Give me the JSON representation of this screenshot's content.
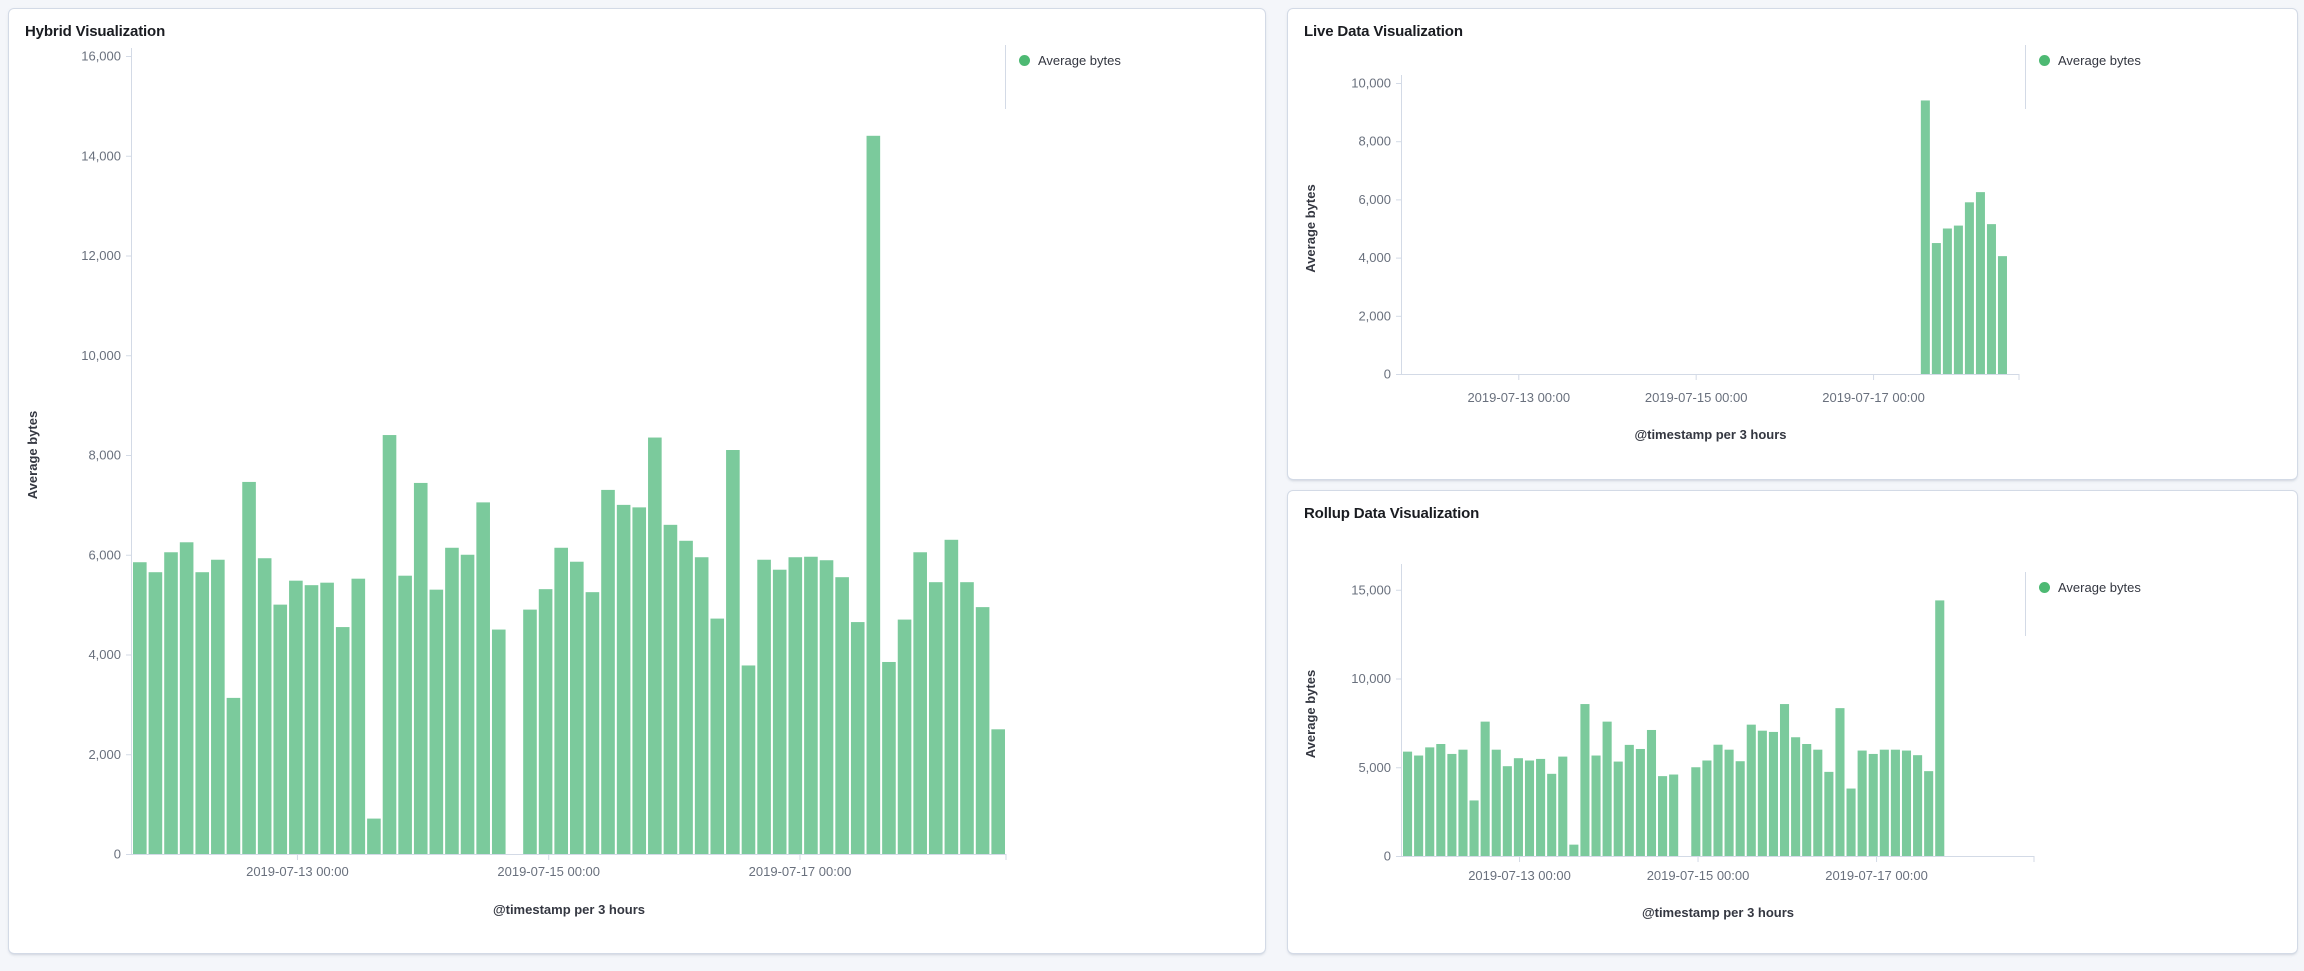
{
  "page": {
    "background": "#f4f6fa"
  },
  "colors": {
    "bar_fill": "#7bca9c",
    "legend_dot": "#4db973",
    "panel_background": "#ffffff",
    "panel_border": "#d3dae6",
    "title_text": "#1a1c21",
    "tick_text": "#69707d",
    "axis_title_text": "#343741",
    "axis_line": "#d3dae6"
  },
  "panels": [
    {
      "id": "hybrid",
      "title": "Hybrid Visualization",
      "legend_label": "Average bytes"
    },
    {
      "id": "live",
      "title": "Live Data Visualization",
      "legend_label": "Average bytes"
    },
    {
      "id": "rollup",
      "title": "Rollup Data Visualization",
      "legend_label": "Average bytes"
    }
  ],
  "chart_data": [
    {
      "id": "hybrid",
      "type": "bar",
      "title": "Hybrid Visualization",
      "xlabel": "@timestamp per 3 hours",
      "ylabel": "Average bytes",
      "ylim": [
        0,
        16000
      ],
      "grid": false,
      "legend_position": "right",
      "bucket_interval": "3 hours",
      "y_tick_labels": [
        "0",
        "2,000",
        "4,000",
        "6,000",
        "8,000",
        "10,000",
        "12,000",
        "14,000",
        "16,000"
      ],
      "x_tick_labels": [
        "2019-07-13 00:00",
        "2019-07-15 00:00",
        "2019-07-17 00:00"
      ],
      "lead_empty_buckets": 0,
      "trail_empty_buckets": 0,
      "note": "null = missing 3h bucket (gap before 2019-07-15)",
      "series": [
        {
          "name": "Average bytes",
          "values": [
            5850,
            5650,
            6050,
            6250,
            5650,
            5900,
            3130,
            7460,
            5930,
            5000,
            5480,
            5390,
            5440,
            4550,
            5520,
            710,
            8400,
            5580,
            7440,
            5300,
            6140,
            6000,
            7050,
            4500,
            null,
            4900,
            5310,
            6140,
            5860,
            5250,
            7300,
            7000,
            6950,
            8350,
            6600,
            6280,
            5950,
            4720,
            8100,
            3780,
            5900,
            5700,
            5950,
            5960,
            5890,
            5550,
            4650,
            14400,
            3850,
            4700,
            6050,
            5450,
            6300,
            5450,
            4950,
            2500
          ]
        }
      ]
    },
    {
      "id": "live",
      "type": "bar",
      "title": "Live Data Visualization",
      "xlabel": "@timestamp per 3 hours",
      "ylabel": "Average bytes",
      "ylim": [
        0,
        10000
      ],
      "grid": false,
      "legend_position": "right",
      "bucket_interval": "3 hours",
      "y_tick_labels": [
        "0",
        "2,000",
        "4,000",
        "6,000",
        "8,000",
        "10,000"
      ],
      "x_tick_labels": [
        "2019-07-13 00:00",
        "2019-07-15 00:00",
        "2019-07-17 00:00"
      ],
      "lead_empty_buckets": 47,
      "trail_empty_buckets": 1,
      "note": "data present only for the most recent buckets at the right edge",
      "series": [
        {
          "name": "Average bytes",
          "values": [
            9400,
            4500,
            5000,
            5100,
            5900,
            6250,
            5150,
            4050
          ]
        }
      ]
    },
    {
      "id": "rollup",
      "type": "bar",
      "title": "Rollup Data Visualization",
      "xlabel": "@timestamp per 3 hours",
      "ylabel": "Average bytes",
      "ylim": [
        0,
        16000
      ],
      "grid": false,
      "legend_position": "right",
      "bucket_interval": "3 hours",
      "y_tick_labels": [
        "0",
        "5,000",
        "10,000",
        "15,000"
      ],
      "x_tick_labels": [
        "2019-07-13 00:00",
        "2019-07-15 00:00",
        "2019-07-17 00:00"
      ],
      "lead_empty_buckets": 0,
      "trail_empty_buckets": 8,
      "note": "null = missing bucket before 2019-07-15; rollup series ends at the spike, axis extends beyond",
      "series": [
        {
          "name": "Average bytes",
          "values": [
            5880,
            5660,
            6120,
            6310,
            5750,
            5990,
            3130,
            7570,
            5990,
            5060,
            5510,
            5380,
            5470,
            4630,
            5600,
            640,
            8560,
            5660,
            7570,
            5320,
            6260,
            6030,
            7100,
            4500,
            4590,
            null,
            5000,
            5380,
            6270,
            5990,
            5340,
            7400,
            7060,
            6990,
            8560,
            6690,
            6310,
            5990,
            4740,
            8330,
            3800,
            5940,
            5750,
            5990,
            5990,
            5940,
            5680,
            4780,
            14400
          ]
        }
      ]
    }
  ]
}
